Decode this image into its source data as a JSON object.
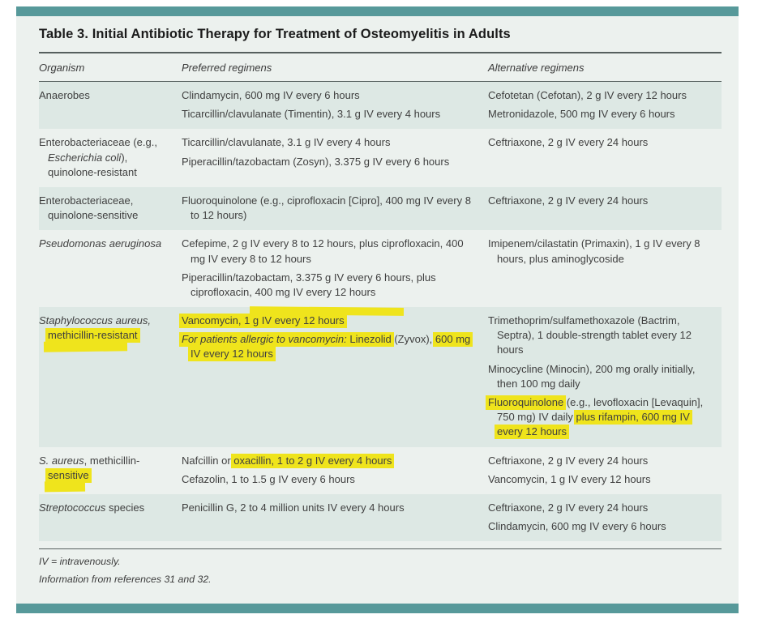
{
  "page": {
    "title": "Table 3. Initial Antibiotic Therapy for Treatment of Osteomyelitis in Adults",
    "columns": [
      "Organism",
      "Preferred regimens",
      "Alternative regimens"
    ],
    "footnotes": [
      "IV = intravenously.",
      "Information from references 31 and 32."
    ],
    "colors": {
      "accent": "#57999a",
      "page_bg": "#ecf1ee",
      "stripe_bg": "#dde8e4",
      "highlight": "#efe41c",
      "text": "#3f3f3f"
    }
  },
  "rows": [
    {
      "striped": true,
      "organism": [
        [
          {
            "t": "Anaerobes"
          }
        ]
      ],
      "preferred": [
        [
          {
            "t": "Clindamycin, 600 mg IV every 6 hours"
          }
        ],
        [
          {
            "t": "Ticarcillin/clavulanate (Timentin), 3.1 g IV every 4 hours"
          }
        ]
      ],
      "alternative": [
        [
          {
            "t": "Cefotetan (Cefotan), 2 g IV every 12 hours"
          }
        ],
        [
          {
            "t": "Metronidazole, 500 mg IV every 6 hours"
          }
        ]
      ]
    },
    {
      "striped": false,
      "organism": [
        [
          {
            "t": "Enterobacteriaceae (e.g., "
          },
          {
            "t": "Escherichia coli",
            "i": true
          },
          {
            "t": "), quinolone-resistant"
          }
        ]
      ],
      "preferred": [
        [
          {
            "t": "Ticarcillin/clavulanate, 3.1 g IV every 4 hours"
          }
        ],
        [
          {
            "t": "Piperacillin/tazobactam (Zosyn), 3.375 g IV every 6 hours"
          }
        ]
      ],
      "alternative": [
        [
          {
            "t": "Ceftriaxone, 2 g IV every 24 hours"
          }
        ]
      ]
    },
    {
      "striped": true,
      "organism": [
        [
          {
            "t": "Enterobacteriaceae, quinolone-sensitive"
          }
        ]
      ],
      "preferred": [
        [
          {
            "t": "Fluoroquinolone (e.g., ciprofloxacin [Cipro], 400 mg IV every 8 to 12 hours)"
          }
        ]
      ],
      "alternative": [
        [
          {
            "t": "Ceftriaxone, 2 g IV every 24 hours"
          }
        ]
      ]
    },
    {
      "striped": false,
      "organism": [
        [
          {
            "t": "Pseudomonas aeruginosa",
            "i": true
          }
        ]
      ],
      "preferred": [
        [
          {
            "t": "Cefepime, 2 g IV every 8 to 12 hours, plus ciprofloxacin, 400 mg IV every 8 to 12 hours"
          }
        ],
        [
          {
            "t": "Piperacillin/tazobactam, 3.375 g IV every 6 hours, plus ciprofloxacin, 400 mg IV every 12 hours"
          }
        ]
      ],
      "alternative": [
        [
          {
            "t": "Imipenem/cilastatin (Primaxin), 1 g IV every 8 hours, plus aminoglycoside"
          }
        ]
      ]
    },
    {
      "striped": true,
      "organism": [
        [
          {
            "t": "Staphylococcus aureus,",
            "i": true
          },
          {
            "t": " "
          },
          {
            "t": "methicillin-resistant",
            "h": true,
            "tail": "down"
          }
        ]
      ],
      "preferred": [
        [
          {
            "t": "Vancomycin, 1 g IV every 12 hours",
            "h": true,
            "tail": "up"
          }
        ],
        [
          {
            "t": "For patients allergic to vancomycin:",
            "i": true,
            "h": true
          },
          {
            "t": " "
          },
          {
            "t": "Linezolid",
            "h": true
          },
          {
            "t": " (Zyvox), "
          },
          {
            "t": "600 mg IV every 12 hours",
            "h": true,
            "tail": "down"
          }
        ]
      ],
      "alternative": [
        [
          {
            "t": "Trimethoprim/sulfamethoxazole (Bactrim, Septra), 1 double-strength tablet every 12 hours"
          }
        ],
        [
          {
            "t": "Minocycline (Minocin), 200 mg orally initially, then 100 mg daily"
          }
        ],
        [
          {
            "t": "Fluoroquinolone",
            "h": true
          },
          {
            "t": " (e.g., levofloxacin [Levaquin], 750 mg) IV daily "
          },
          {
            "t": "plus rifampin,",
            "h": true
          },
          {
            "t": " "
          },
          {
            "t": "600 mg IV every 12 hours",
            "h": true,
            "tail": "down"
          }
        ]
      ]
    },
    {
      "striped": false,
      "organism": [
        [
          {
            "t": "S. aureus",
            "i": true
          },
          {
            "t": ", methicillin-"
          },
          {
            "t": "sensitive",
            "h": true,
            "tail": "down"
          }
        ]
      ],
      "preferred": [
        [
          {
            "t": "Nafcillin or "
          },
          {
            "t": "oxacillin, 1 to 2 g IV every 4 hours",
            "h": true
          }
        ],
        [
          {
            "t": "Cefazolin, 1 to 1.5 g IV every 6 hours"
          }
        ]
      ],
      "alternative": [
        [
          {
            "t": "Ceftriaxone, 2 g IV every 24 hours"
          }
        ],
        [
          {
            "t": "Vancomycin, 1 g IV every 12 hours"
          }
        ]
      ]
    },
    {
      "striped": true,
      "organism": [
        [
          {
            "t": "Streptococcus",
            "i": true
          },
          {
            "t": " species"
          }
        ]
      ],
      "preferred": [
        [
          {
            "t": "Penicillin G, 2 to 4 million units IV every 4 hours"
          }
        ]
      ],
      "alternative": [
        [
          {
            "t": "Ceftriaxone, 2 g IV every 24 hours"
          }
        ],
        [
          {
            "t": "Clindamycin, 600 mg IV every 6 hours"
          }
        ]
      ]
    }
  ]
}
